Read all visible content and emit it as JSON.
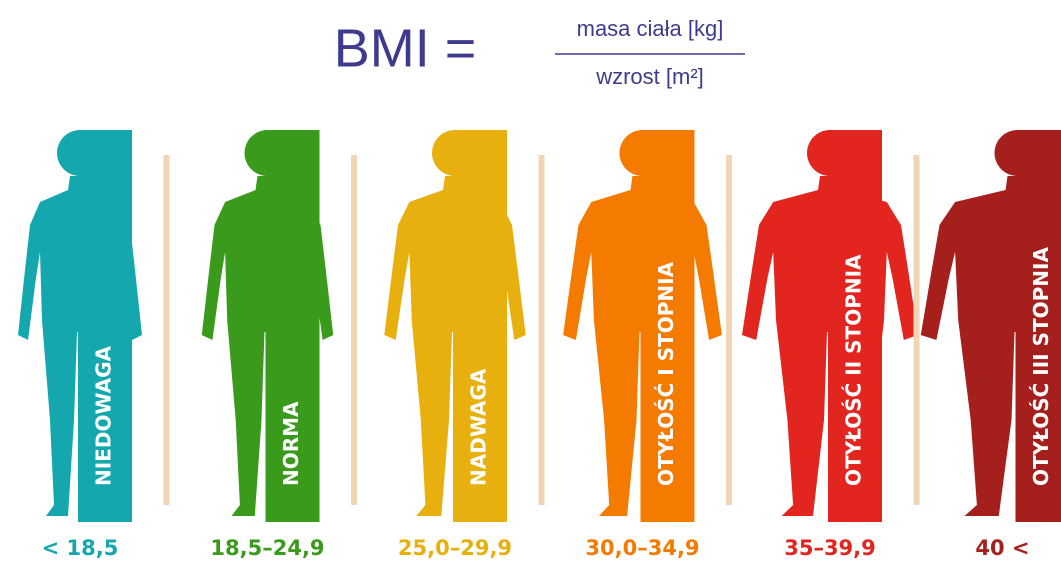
{
  "formula": {
    "lhs": "BMI =",
    "numerator": "masa ciała [kg]",
    "denominator": "wzrost [m²]"
  },
  "categories": [
    {
      "label": "NIEDOWAGA",
      "range": "< 18,5",
      "color": "#14a7ad"
    },
    {
      "label": "NORMA",
      "range": "18,5–24,9",
      "color": "#3a9a1c"
    },
    {
      "label": "NADWAGA",
      "range": "25,0–29,9",
      "color": "#e8b00f"
    },
    {
      "label": "OTYŁOŚĆ I STOPNIA",
      "range": "30,0–34,9",
      "color": "#f47a00"
    },
    {
      "label": "OTYŁOŚĆ II STOPNIA",
      "range": "35–39,9",
      "color": "#e2261f"
    },
    {
      "label": "OTYŁOŚĆ III STOPNIA",
      "range": "40 <",
      "color": "#a51f1d"
    }
  ]
}
